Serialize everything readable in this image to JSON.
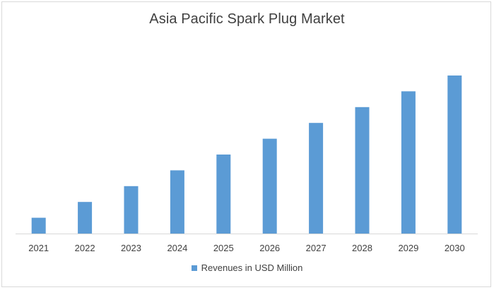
{
  "chart_data": {
    "type": "bar",
    "title": "Asia Pacific Spark Plug Market",
    "categories": [
      "2021",
      "2022",
      "2023",
      "2024",
      "2025",
      "2026",
      "2027",
      "2028",
      "2029",
      "2030"
    ],
    "series": [
      {
        "name": "Revenues in USD Million",
        "values": [
          10,
          20,
          30,
          40,
          50,
          60,
          70,
          80,
          90,
          100
        ],
        "color": "#5b9bd5"
      }
    ],
    "xlabel": "",
    "ylabel": "",
    "ylim": [
      0,
      100
    ],
    "grid": false,
    "legend_position": "bottom"
  }
}
